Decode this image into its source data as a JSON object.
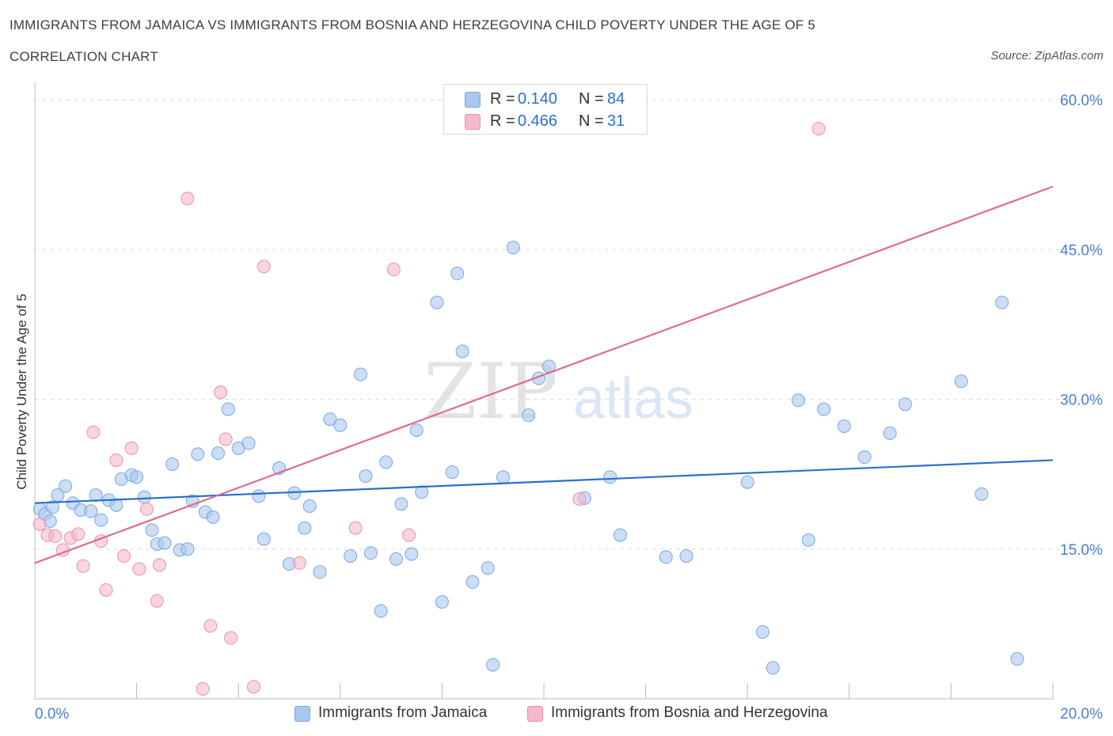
{
  "title": "IMMIGRANTS FROM JAMAICA VS IMMIGRANTS FROM BOSNIA AND HERZEGOVINA CHILD POVERTY UNDER THE AGE OF 5",
  "subtitle": "CORRELATION CHART",
  "source": "Source: ZipAtlas.com",
  "watermark": {
    "zip": "ZIP",
    "atlas": "atlas"
  },
  "legend_top": {
    "rows": [
      {
        "r_label": "R =",
        "r_value": "0.140",
        "n_label": "N =",
        "n_value": "84"
      },
      {
        "r_label": "R =",
        "r_value": "0.466",
        "n_label": "N =",
        "n_value": "31"
      }
    ]
  },
  "legend_bottom": {
    "items": [
      {
        "label": "Immigrants from Jamaica"
      },
      {
        "label": "Immigrants from Bosnia and Herzegovina"
      }
    ]
  },
  "colors": {
    "blue_fill": "#a9c8f0",
    "blue_stroke": "#7aa7de",
    "blue_line": "#2a6fcc",
    "pink_fill": "#f5b9cb",
    "pink_stroke": "#e890ab",
    "pink_line": "#e06a93",
    "axis_label": "#4a7fd4",
    "grid": "#dddddd"
  },
  "chart_data": {
    "type": "scatter",
    "title": "IMMIGRANTS FROM JAMAICA VS IMMIGRANTS FROM BOSNIA AND HERZEGOVINA CHILD POVERTY UNDER THE AGE OF 5",
    "xlabel": "",
    "ylabel": "Child Poverty Under the Age of 5",
    "xlim": [
      0,
      20
    ],
    "ylim": [
      0,
      60
    ],
    "x_tick_labels": [
      {
        "value": 0,
        "label": "0.0%"
      },
      {
        "value": 20,
        "label": "20.0%"
      }
    ],
    "y_tick_labels": [
      {
        "value": 15,
        "label": "15.0%"
      },
      {
        "value": 30,
        "label": "30.0%"
      },
      {
        "value": 45,
        "label": "45.0%"
      },
      {
        "value": 60,
        "label": "60.0%"
      }
    ],
    "series": [
      {
        "name": "Immigrants from Jamaica",
        "color": "#a9c8f0",
        "trend": {
          "x": [
            0,
            20
          ],
          "y": [
            19.6,
            23.9
          ]
        },
        "points": [
          [
            0.1,
            19.0
          ],
          [
            0.2,
            18.5
          ],
          [
            0.3,
            17.8
          ],
          [
            0.35,
            19.2
          ],
          [
            0.45,
            20.4
          ],
          [
            0.6,
            21.3
          ],
          [
            0.75,
            19.6
          ],
          [
            0.9,
            18.9
          ],
          [
            1.1,
            18.8
          ],
          [
            1.2,
            20.4
          ],
          [
            1.3,
            17.9
          ],
          [
            1.45,
            19.9
          ],
          [
            1.6,
            19.4
          ],
          [
            1.7,
            22.0
          ],
          [
            1.9,
            22.4
          ],
          [
            2.0,
            22.2
          ],
          [
            2.15,
            20.2
          ],
          [
            2.3,
            16.9
          ],
          [
            2.4,
            15.5
          ],
          [
            2.55,
            15.6
          ],
          [
            2.7,
            23.5
          ],
          [
            2.85,
            14.9
          ],
          [
            3.0,
            15.0
          ],
          [
            3.1,
            19.8
          ],
          [
            3.2,
            24.5
          ],
          [
            3.35,
            18.7
          ],
          [
            3.5,
            18.2
          ],
          [
            3.6,
            24.6
          ],
          [
            3.8,
            29.0
          ],
          [
            4.0,
            25.1
          ],
          [
            4.2,
            25.6
          ],
          [
            4.4,
            20.3
          ],
          [
            4.5,
            16.0
          ],
          [
            4.8,
            23.1
          ],
          [
            5.0,
            13.5
          ],
          [
            5.1,
            20.6
          ],
          [
            5.3,
            17.1
          ],
          [
            5.4,
            19.3
          ],
          [
            5.6,
            12.7
          ],
          [
            5.8,
            28.0
          ],
          [
            6.0,
            27.4
          ],
          [
            6.2,
            14.3
          ],
          [
            6.4,
            32.5
          ],
          [
            6.5,
            22.3
          ],
          [
            6.6,
            14.6
          ],
          [
            6.8,
            8.8
          ],
          [
            6.9,
            23.7
          ],
          [
            7.1,
            14.0
          ],
          [
            7.2,
            19.5
          ],
          [
            7.4,
            14.5
          ],
          [
            7.5,
            26.9
          ],
          [
            7.6,
            20.7
          ],
          [
            7.9,
            39.7
          ],
          [
            8.0,
            9.7
          ],
          [
            8.2,
            22.7
          ],
          [
            8.3,
            42.6
          ],
          [
            8.4,
            34.8
          ],
          [
            8.6,
            11.7
          ],
          [
            8.9,
            13.1
          ],
          [
            9.0,
            3.4
          ],
          [
            9.2,
            22.2
          ],
          [
            9.4,
            45.2
          ],
          [
            9.7,
            28.4
          ],
          [
            9.9,
            32.1
          ],
          [
            10.1,
            33.3
          ],
          [
            10.8,
            20.1
          ],
          [
            11.3,
            22.2
          ],
          [
            11.5,
            16.4
          ],
          [
            12.4,
            14.2
          ],
          [
            12.8,
            14.3
          ],
          [
            14.0,
            21.7
          ],
          [
            14.3,
            6.7
          ],
          [
            14.5,
            3.1
          ],
          [
            15.0,
            29.9
          ],
          [
            15.2,
            15.9
          ],
          [
            15.5,
            29.0
          ],
          [
            15.9,
            27.3
          ],
          [
            16.3,
            24.2
          ],
          [
            16.8,
            26.6
          ],
          [
            17.1,
            29.5
          ],
          [
            18.2,
            31.8
          ],
          [
            18.6,
            20.5
          ],
          [
            19.0,
            39.7
          ],
          [
            19.3,
            4.0
          ]
        ]
      },
      {
        "name": "Immigrants from Bosnia and Herzegovina",
        "color": "#f5b9cb",
        "trend": {
          "x": [
            0,
            20
          ],
          "y": [
            13.6,
            51.3
          ]
        },
        "points": [
          [
            0.1,
            17.5
          ],
          [
            0.25,
            16.4
          ],
          [
            0.4,
            16.3
          ],
          [
            0.55,
            14.9
          ],
          [
            0.7,
            16.1
          ],
          [
            0.85,
            16.5
          ],
          [
            0.95,
            13.3
          ],
          [
            1.15,
            26.7
          ],
          [
            1.3,
            15.8
          ],
          [
            1.4,
            10.9
          ],
          [
            1.6,
            23.9
          ],
          [
            1.75,
            14.3
          ],
          [
            1.9,
            25.1
          ],
          [
            2.05,
            13.0
          ],
          [
            2.2,
            19.0
          ],
          [
            2.4,
            9.8
          ],
          [
            2.45,
            13.4
          ],
          [
            3.0,
            50.1
          ],
          [
            3.3,
            1.0
          ],
          [
            3.45,
            7.3
          ],
          [
            3.65,
            30.7
          ],
          [
            3.75,
            26.0
          ],
          [
            3.85,
            6.1
          ],
          [
            4.3,
            1.2
          ],
          [
            4.5,
            43.3
          ],
          [
            5.2,
            13.6
          ],
          [
            6.3,
            17.1
          ],
          [
            7.05,
            43.0
          ],
          [
            7.35,
            16.4
          ],
          [
            10.7,
            20.0
          ],
          [
            15.4,
            57.1
          ]
        ]
      }
    ]
  }
}
